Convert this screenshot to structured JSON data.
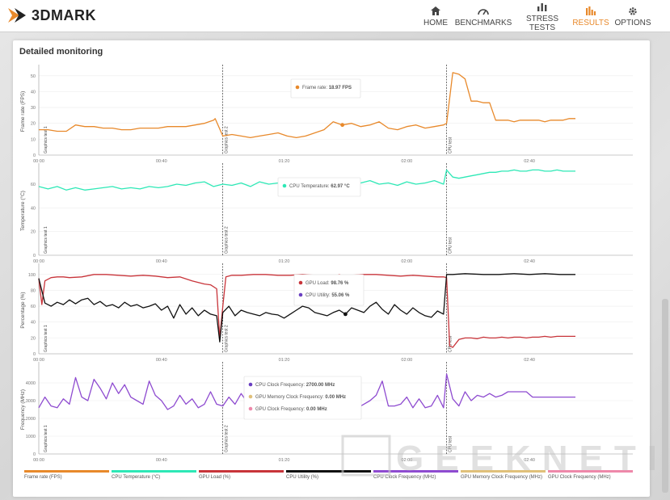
{
  "brand": {
    "name": "3DMARK",
    "accent": "#e8892b"
  },
  "nav": [
    {
      "label": "HOME",
      "icon": "home-icon",
      "active": false
    },
    {
      "label": "BENCHMARKS",
      "icon": "gauge-icon",
      "active": false
    },
    {
      "label": "STRESS TESTS",
      "icon": "bars-icon",
      "active": false
    },
    {
      "label": "RESULTS",
      "icon": "results-icon",
      "active": true
    },
    {
      "label": "OPTIONS",
      "icon": "gear-icon",
      "active": false
    }
  ],
  "page": {
    "title": "Detailed monitoring"
  },
  "time_ticks": [
    "00:00",
    "00:40",
    "01:20",
    "02:00",
    "02:40"
  ],
  "markers": [
    {
      "label": "Graphics test 1",
      "t": 0
    },
    {
      "label": "Graphics test 2",
      "t": 60
    },
    {
      "label": "CPU test",
      "t": 133
    }
  ],
  "chart_data": [
    {
      "type": "line",
      "ylabel": "Frame rate (FPS)",
      "ylim": [
        0,
        55
      ],
      "yticks": [
        0,
        10,
        20,
        30,
        40,
        50
      ],
      "series": [
        {
          "name": "Frame rate (FPS)",
          "color": "#e8892b",
          "x": [
            0,
            3,
            6,
            9,
            12,
            15,
            18,
            21,
            24,
            27,
            30,
            33,
            36,
            39,
            42,
            45,
            48,
            51,
            54,
            57,
            57.5,
            60,
            63,
            66,
            69,
            72,
            75,
            78,
            81,
            84,
            87,
            90,
            93,
            96,
            99,
            102,
            105,
            108,
            111,
            114,
            117,
            120,
            123,
            126,
            129,
            132,
            133,
            135,
            137,
            139,
            141,
            143,
            145,
            147,
            149,
            151,
            153,
            155,
            157,
            159,
            161,
            163,
            165,
            167,
            169,
            171,
            173,
            175
          ],
          "y": [
            16,
            16,
            15,
            15,
            19,
            18,
            18,
            17,
            17,
            16,
            16,
            17,
            17,
            17,
            18,
            18,
            18,
            19,
            20,
            22,
            23,
            12,
            13,
            12,
            11,
            12,
            13,
            14,
            12,
            11,
            12,
            14,
            16,
            21,
            19,
            20,
            18,
            19,
            21,
            17,
            16,
            18,
            19,
            17,
            18,
            19,
            20,
            52,
            51,
            48,
            34,
            34,
            33,
            33,
            22,
            22,
            22,
            21,
            22,
            22,
            22,
            22,
            21,
            22,
            22,
            22,
            23,
            23
          ]
        }
      ],
      "tooltip": [
        {
          "label": "Frame rate:",
          "value": "18.97 FPS",
          "color": "#e8892b"
        }
      ],
      "tooltip_t": 100
    },
    {
      "type": "line",
      "ylabel": "Temperature (°C)",
      "ylim": [
        0,
        75
      ],
      "yticks": [
        0,
        20,
        40,
        60
      ],
      "series": [
        {
          "name": "CPU Temperature (°C)",
          "color": "#2ee8b6",
          "x": [
            0,
            3,
            6,
            9,
            12,
            15,
            18,
            21,
            24,
            27,
            30,
            33,
            36,
            39,
            42,
            45,
            48,
            51,
            54,
            57,
            60,
            63,
            66,
            69,
            72,
            75,
            78,
            81,
            84,
            87,
            90,
            93,
            96,
            99,
            102,
            105,
            108,
            111,
            114,
            117,
            120,
            123,
            126,
            129,
            132,
            133,
            135,
            137,
            139,
            141,
            143,
            145,
            147,
            149,
            151,
            153,
            155,
            157,
            159,
            161,
            163,
            165,
            167,
            169,
            171,
            173,
            175
          ],
          "y": [
            58,
            56,
            58,
            55,
            57,
            55,
            56,
            57,
            58,
            56,
            57,
            56,
            58,
            57,
            58,
            60,
            59,
            61,
            62,
            58,
            60,
            59,
            61,
            58,
            62,
            60,
            61,
            59,
            62,
            58,
            60,
            61,
            59,
            60,
            62,
            61,
            63,
            60,
            61,
            59,
            62,
            60,
            61,
            63,
            60,
            72,
            66,
            65,
            66,
            67,
            68,
            69,
            70,
            70,
            71,
            71,
            72,
            71,
            71,
            72,
            72,
            71,
            71,
            72,
            71,
            71,
            71
          ]
        }
      ],
      "tooltip": [
        {
          "label": "CPU Temperature:",
          "value": "62.97 °C",
          "color": "#2ee8b6"
        }
      ],
      "tooltip_t": 100
    },
    {
      "type": "line",
      "ylabel": "Percentage (%)",
      "ylim": [
        0,
        110
      ],
      "yticks": [
        0,
        20,
        40,
        60,
        80,
        100
      ],
      "series": [
        {
          "name": "GPU Load (%)",
          "color": "#c8343a",
          "x": [
            0,
            1,
            2,
            4,
            6,
            8,
            10,
            14,
            18,
            22,
            26,
            30,
            34,
            38,
            42,
            46,
            50,
            54,
            56,
            58,
            59,
            60,
            61,
            63,
            66,
            70,
            74,
            78,
            82,
            86,
            90,
            94,
            98,
            102,
            106,
            110,
            114,
            118,
            122,
            126,
            130,
            132,
            133,
            134,
            135,
            137,
            139,
            141,
            143,
            145,
            147,
            149,
            151,
            153,
            155,
            157,
            159,
            161,
            163,
            165,
            167,
            169,
            171,
            173,
            175
          ],
          "y": [
            95,
            62,
            92,
            96,
            97,
            97,
            96,
            97,
            100,
            100,
            99,
            98,
            99,
            98,
            96,
            97,
            92,
            88,
            87,
            82,
            20,
            60,
            97,
            99,
            99,
            100,
            100,
            99,
            99,
            100,
            99,
            99,
            98,
            99,
            100,
            100,
            99,
            98,
            99,
            98,
            97,
            97,
            96,
            10,
            8,
            18,
            20,
            20,
            19,
            21,
            20,
            20,
            21,
            20,
            21,
            21,
            20,
            21,
            21,
            22,
            21,
            22,
            22,
            22,
            22
          ]
        },
        {
          "name": "CPU Utility (%)",
          "color": "#111111",
          "x": [
            0,
            2,
            4,
            6,
            8,
            10,
            12,
            14,
            16,
            18,
            20,
            22,
            24,
            26,
            28,
            30,
            32,
            34,
            36,
            38,
            40,
            42,
            44,
            46,
            48,
            50,
            52,
            54,
            56,
            58,
            59,
            60,
            62,
            64,
            66,
            68,
            70,
            72,
            74,
            76,
            78,
            80,
            82,
            84,
            86,
            88,
            90,
            92,
            94,
            96,
            98,
            100,
            102,
            104,
            106,
            108,
            110,
            112,
            114,
            116,
            118,
            120,
            122,
            124,
            126,
            128,
            130,
            132,
            133,
            135,
            139,
            145,
            150,
            155,
            160,
            165,
            170,
            175
          ],
          "y": [
            95,
            64,
            60,
            65,
            62,
            68,
            63,
            68,
            70,
            62,
            66,
            60,
            62,
            58,
            65,
            60,
            62,
            58,
            60,
            63,
            55,
            60,
            45,
            62,
            50,
            58,
            48,
            55,
            50,
            48,
            15,
            52,
            60,
            48,
            55,
            52,
            50,
            48,
            52,
            50,
            49,
            45,
            50,
            55,
            60,
            58,
            52,
            50,
            48,
            52,
            55,
            50,
            58,
            55,
            52,
            60,
            65,
            56,
            50,
            62,
            55,
            50,
            58,
            52,
            48,
            46,
            54,
            50,
            100,
            100,
            101,
            100,
            100,
            101,
            100,
            101,
            100,
            100
          ]
        }
      ],
      "tooltip": [
        {
          "label": "GPU Load:",
          "value": "98.76 %",
          "color": "#c8343a"
        },
        {
          "label": "CPU Utility:",
          "value": "55.06 %",
          "color": "#6a3fc1"
        }
      ],
      "tooltip_t": 100
    },
    {
      "type": "line",
      "ylabel": "Frequency (MHz)",
      "ylim": [
        0,
        5000
      ],
      "yticks": [
        0,
        1000,
        2000,
        3000,
        4000
      ],
      "series": [
        {
          "name": "CPU Clock Frequency (MHz)",
          "color": "#8e4bd0",
          "x": [
            0,
            2,
            4,
            6,
            8,
            10,
            12,
            14,
            16,
            18,
            20,
            22,
            24,
            26,
            28,
            30,
            32,
            34,
            36,
            38,
            40,
            42,
            44,
            46,
            48,
            50,
            52,
            54,
            56,
            58,
            60,
            62,
            64,
            66,
            68,
            70,
            72,
            74,
            76,
            78,
            80,
            82,
            84,
            86,
            88,
            90,
            92,
            94,
            96,
            98,
            100,
            102,
            104,
            106,
            108,
            110,
            112,
            114,
            116,
            118,
            120,
            122,
            124,
            126,
            128,
            130,
            132,
            133,
            135,
            137,
            139,
            141,
            143,
            145,
            147,
            149,
            151,
            153,
            155,
            157,
            159,
            161,
            163,
            165,
            167,
            169,
            171,
            173,
            175
          ],
          "y": [
            2600,
            3200,
            2700,
            2600,
            3100,
            2800,
            4300,
            3200,
            3000,
            4200,
            3700,
            3100,
            4000,
            3400,
            3900,
            3200,
            3000,
            2800,
            4100,
            3300,
            3000,
            2500,
            2700,
            3300,
            2800,
            3100,
            2600,
            2800,
            3500,
            2800,
            2700,
            3200,
            2800,
            3400,
            2900,
            3600,
            3000,
            2900,
            2700,
            3300,
            3000,
            2800,
            3100,
            2900,
            2700,
            3000,
            3300,
            2800,
            3100,
            2800,
            2700,
            3400,
            2600,
            2800,
            3000,
            3300,
            4100,
            2700,
            2700,
            2800,
            3200,
            2600,
            3100,
            2600,
            2700,
            3300,
            2600,
            4500,
            3100,
            2700,
            3500,
            3000,
            3300,
            3200,
            3400,
            3200,
            3300,
            3500,
            3500,
            3500,
            3500,
            3200,
            3200,
            3200,
            3200,
            3200,
            3200,
            3200,
            3200
          ]
        }
      ],
      "tooltip": [
        {
          "label": "CPU Clock Frequency:",
          "value": "2700.00 MHz",
          "color": "#6a3fc1"
        },
        {
          "label": "GPU Memory Clock Frequency:",
          "value": "0.00 MHz",
          "color": "#e0c07a"
        },
        {
          "label": "GPU Clock Frequency:",
          "value": "0.00 MHz",
          "color": "#ee88aa"
        }
      ],
      "tooltip_t": 100
    }
  ],
  "legend": [
    {
      "label": "Frame rate (FPS)",
      "color": "#e8892b"
    },
    {
      "label": "CPU Temperature (°C)",
      "color": "#2ee8b6"
    },
    {
      "label": "GPU Load (%)",
      "color": "#c8343a"
    },
    {
      "label": "CPU Utility (%)",
      "color": "#111111"
    },
    {
      "label": "CPU Clock Frequency (MHz)",
      "color": "#8e4bd0"
    },
    {
      "label": "GPU Memory Clock Frequency (MHz)",
      "color": "#e0c07a"
    },
    {
      "label": "GPU Clock Frequency (MHz)",
      "color": "#ee88aa"
    }
  ],
  "watermark": "GEEKNETIC"
}
